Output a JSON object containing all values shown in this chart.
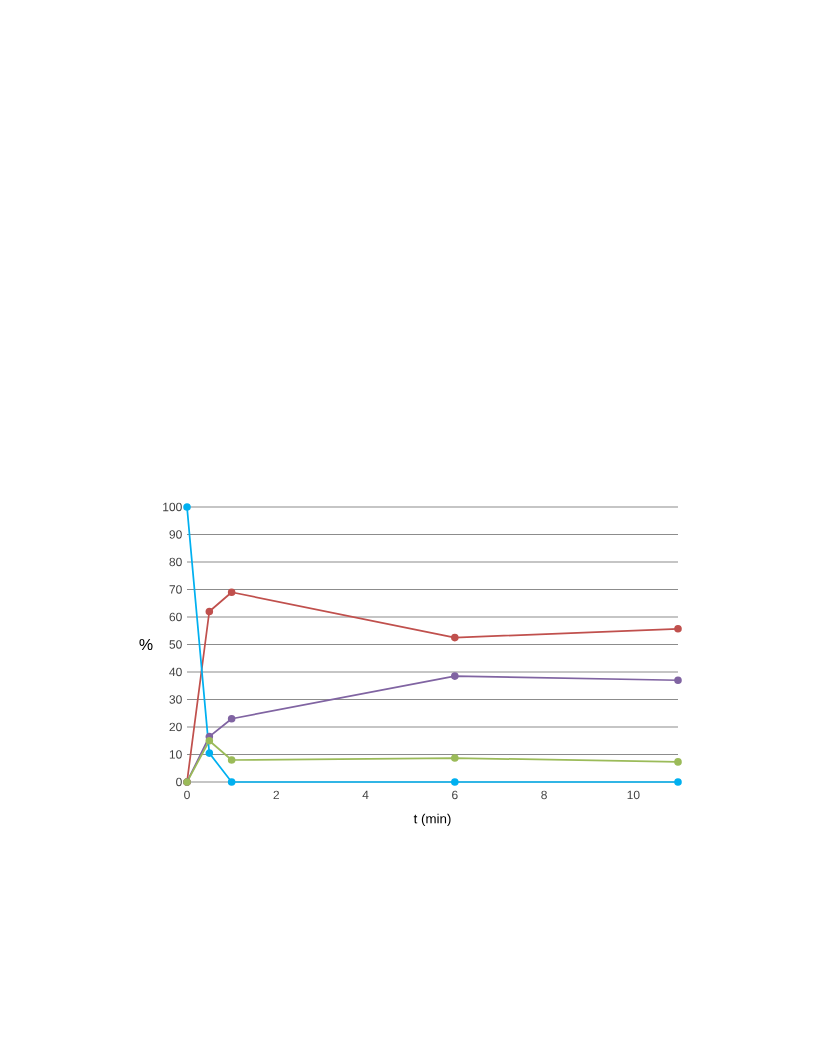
{
  "chart_data": {
    "type": "line",
    "xlabel": "t (min)",
    "ylabel": "%",
    "x": [
      0,
      0.5,
      1,
      6,
      11
    ],
    "series": [
      {
        "color": "#c0504d",
        "values": [
          0,
          62,
          69,
          52.5,
          55.7
        ]
      },
      {
        "color": "#8064a2",
        "values": [
          0,
          16.5,
          23,
          38.5,
          37
        ]
      },
      {
        "color": "#9bbb59",
        "values": [
          0,
          15,
          8,
          8.7,
          7.3
        ]
      },
      {
        "color": "#00b0f0",
        "values": [
          100,
          10.5,
          0,
          0,
          0
        ]
      }
    ],
    "xlim": [
      0,
      11
    ],
    "xticks": [
      0,
      2,
      4,
      6,
      8,
      10
    ],
    "ylim": [
      0,
      100
    ],
    "yticks": [
      0,
      10,
      20,
      30,
      40,
      50,
      60,
      70,
      80,
      90,
      100
    ],
    "grid": "y",
    "marker": "circle",
    "line_style": "solid"
  }
}
